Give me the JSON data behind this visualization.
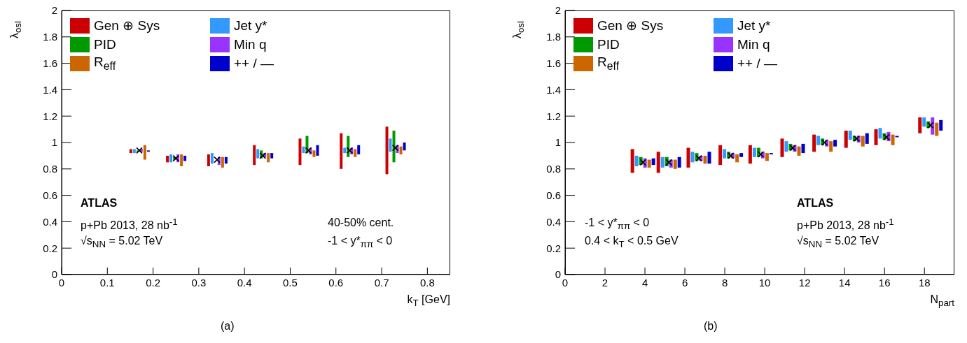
{
  "chart_data": [
    {
      "type": "bar",
      "xlabel": "k$_{T}$  [GeV]",
      "ylabel": "λ$_{osl}$",
      "xlim": [
        0,
        0.85
      ],
      "ylim": [
        0,
        2
      ],
      "xticks": [
        0,
        0.1,
        0.2,
        0.3,
        0.4,
        0.5,
        0.6,
        0.7,
        0.8
      ],
      "yticks": [
        0,
        0.2,
        0.4,
        0.6,
        0.8,
        1,
        1.2,
        1.4,
        1.6,
        1.8,
        2
      ],
      "grid": false,
      "legend": "top left",
      "annotations": [
        "ATLAS",
        "p+Pb 2013, 28 nb$^{-1}$",
        "√s$_{NN}$ = 5.02 TeV",
        "40-50% cent.",
        "-1 < y*$_{ππ}$ < 0",
        "(a)"
      ],
      "x": [
        0.17,
        0.25,
        0.34,
        0.44,
        0.54,
        0.63,
        0.73
      ],
      "series": [
        {
          "name": "Gen ⊕ Sys",
          "color": "#cc0000",
          "base": [
            0.92,
            0.85,
            0.82,
            0.83,
            0.83,
            0.8,
            0.76
          ],
          "values": [
            0.03,
            0.05,
            0.09,
            0.15,
            0.2,
            0.27,
            0.36
          ]
        },
        {
          "name": "Jet y*",
          "color": "#3399ff",
          "base": [
            0.92,
            0.85,
            0.84,
            0.88,
            0.92,
            0.92,
            0.93
          ],
          "values": [
            0.03,
            0.06,
            0.08,
            0.07,
            0.05,
            0.04,
            0.1
          ]
        },
        {
          "name": "PID",
          "color": "#009900",
          "base": [
            0.93,
            0.87,
            null,
            0.88,
            0.92,
            0.89,
            0.85
          ],
          "values": [
            0.01,
            0.02,
            null,
            0.06,
            0.13,
            0.16,
            0.24
          ]
        },
        {
          "name": "Min q",
          "color": "#9933ff",
          "base": [
            0.93,
            0.85,
            0.83,
            0.89,
            0.91,
            0.91,
            0.92
          ],
          "values": [
            0.02,
            0.06,
            0.06,
            0.03,
            0.05,
            0.05,
            0.06
          ]
        },
        {
          "name": "R$_{eff}$",
          "color": "#cc6600",
          "base": [
            0.87,
            0.82,
            0.81,
            0.85,
            0.89,
            0.89,
            0.91
          ],
          "values": [
            0.11,
            0.09,
            0.08,
            0.07,
            0.05,
            0.06,
            0.06
          ]
        },
        {
          "name": "++ / —",
          "color": "#0000cc",
          "base": [
            0.93,
            0.86,
            0.84,
            0.88,
            0.9,
            0.91,
            0.94
          ],
          "values": [
            0.01,
            0.04,
            0.05,
            0.04,
            0.08,
            0.07,
            0.06
          ]
        },
        {
          "type": "scatter",
          "color": "#000000",
          "marker": "cross",
          "values": [
            0.94,
            0.88,
            0.87,
            0.9,
            0.94,
            0.94,
            0.96
          ]
        }
      ]
    },
    {
      "type": "bar",
      "xlabel": "N$_{part}$",
      "ylabel": "λ$_{osl}$",
      "xlim": [
        0,
        19.5
      ],
      "ylim": [
        0,
        2
      ],
      "xticks": [
        0,
        2,
        4,
        6,
        8,
        10,
        12,
        14,
        16,
        18
      ],
      "yticks": [
        0,
        0.2,
        0.4,
        0.6,
        0.8,
        1,
        1.2,
        1.4,
        1.6,
        1.8,
        2
      ],
      "grid": false,
      "legend": "top left",
      "annotations": [
        "-1 < y*$_{ππ}$ < 0",
        "0.4 < k$_{T}$ < 0.5 GeV",
        "ATLAS",
        "p+Pb 2013, 28 nb$^{-1}$",
        "√s$_{NN}$ = 5.02 TeV",
        "(b)"
      ],
      "x": [
        3.9,
        5.2,
        6.7,
        8.3,
        9.8,
        11.4,
        13.0,
        14.6,
        16.1,
        18.3
      ],
      "series": [
        {
          "name": "Gen ⊕ Sys",
          "color": "#cc0000",
          "base": [
            0.77,
            0.77,
            0.81,
            0.83,
            0.84,
            0.89,
            0.93,
            0.96,
            0.98,
            1.07
          ],
          "values": [
            0.18,
            0.16,
            0.15,
            0.15,
            0.14,
            0.14,
            0.13,
            0.13,
            0.12,
            0.12
          ]
        },
        {
          "name": "Jet y*",
          "color": "#3399ff",
          "base": [
            0.82,
            0.81,
            0.85,
            0.88,
            0.89,
            0.93,
            0.98,
            1.02,
            1.03,
            1.12
          ],
          "values": [
            0.08,
            0.08,
            0.08,
            0.07,
            0.07,
            0.08,
            0.07,
            0.07,
            0.08,
            0.07
          ]
        },
        {
          "name": "PID",
          "color": "#009900",
          "base": [
            0.83,
            0.82,
            0.86,
            0.88,
            0.89,
            0.94,
            0.98,
            1.01,
            1.02,
            1.11
          ],
          "values": [
            0.06,
            0.07,
            0.06,
            0.05,
            0.07,
            0.05,
            0.05,
            0.04,
            0.05,
            0.05
          ]
        },
        {
          "name": "Min q",
          "color": "#9933ff",
          "base": [
            0.81,
            0.81,
            0.86,
            0.88,
            0.88,
            0.93,
            0.97,
            1.0,
            1.01,
            1.06
          ],
          "values": [
            0.07,
            0.06,
            0.04,
            0.04,
            0.05,
            0.05,
            0.05,
            0.05,
            0.07,
            0.13
          ]
        },
        {
          "name": "R$_{eff}$",
          "color": "#cc6600",
          "base": [
            0.81,
            0.8,
            0.84,
            0.85,
            0.86,
            0.9,
            0.93,
            0.97,
            0.98,
            1.05
          ],
          "values": [
            0.06,
            0.07,
            0.06,
            0.06,
            0.06,
            0.07,
            0.08,
            0.08,
            0.08,
            0.1
          ]
        },
        {
          "name": "++ / —",
          "color": "#0000cc",
          "base": [
            0.83,
            0.81,
            0.84,
            0.89,
            0.91,
            0.92,
            0.97,
            0.99,
            1.04,
            1.09
          ],
          "values": [
            0.05,
            0.08,
            0.09,
            0.03,
            0.01,
            0.07,
            0.05,
            0.08,
            0.01,
            0.08
          ]
        },
        {
          "type": "scatter",
          "color": "#000000",
          "marker": "cross",
          "values": [
            0.85,
            0.85,
            0.88,
            0.9,
            0.91,
            0.96,
            1.0,
            1.03,
            1.04,
            1.13
          ]
        }
      ]
    }
  ]
}
